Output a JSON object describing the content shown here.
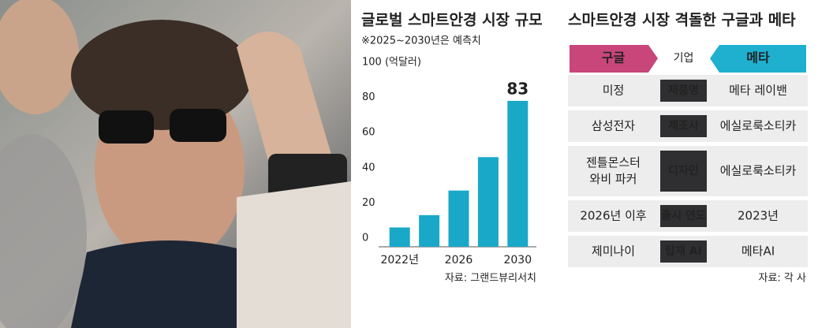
{
  "chart_data": {
    "type": "bar",
    "title": "글로벌 스마트안경 시장 규모",
    "subtitle": "※2025~2030년은 예측치",
    "categories": [
      "2022년",
      null,
      "2026",
      null,
      "2030"
    ],
    "values": [
      11,
      18,
      32,
      51,
      83
    ],
    "color": "#1aa8c9",
    "ylim": [
      0,
      100
    ],
    "yticks": [
      0,
      20,
      40,
      60,
      80,
      {
        "value": 100,
        "label": "100 (억달러)"
      }
    ],
    "grid": false,
    "source": "자료: 그랜드뷰리서치"
  },
  "table": {
    "title": "스마트안경 시장 격돌한 구글과 메타",
    "header": [
      "구글",
      "기업",
      "메타"
    ],
    "rows": [
      [
        "미정",
        "제품명",
        "메타 레이밴"
      ],
      [
        "삼성전자",
        "제조사",
        "에실로룩소티카"
      ],
      [
        [
          "젠틀몬스터",
          "와비 파커"
        ],
        "디자인",
        "에실로룩소티카"
      ],
      [
        "2026년 이후",
        "출시 연도",
        "2023년"
      ],
      [
        "제미나이",
        "탑재 AI",
        "메타AI"
      ]
    ],
    "source": "자료: 각 사"
  }
}
